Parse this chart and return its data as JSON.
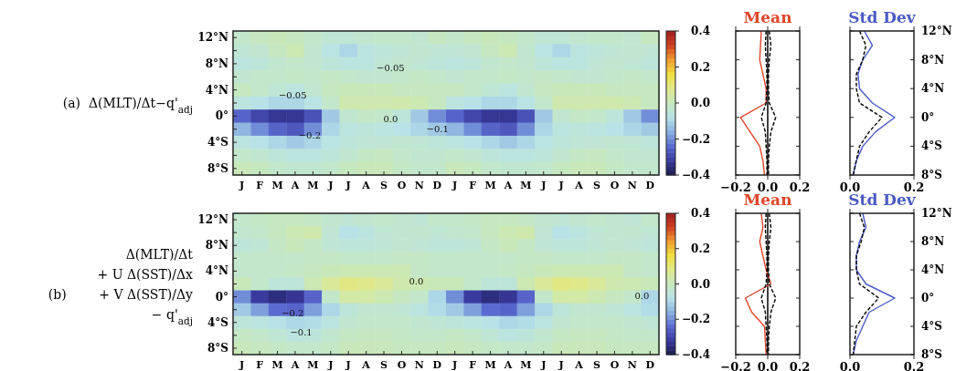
{
  "chart_data": [
    {
      "type": "heatmap",
      "ylabel": "(a)  Δ(MLT)/Δt−q'$_{adj}$",
      "categories": [
        "J",
        "F",
        "M",
        "A",
        "M",
        "J",
        "J",
        "A",
        "S",
        "O",
        "N",
        "D",
        "J",
        "F",
        "M",
        "A",
        "M",
        "J",
        "J",
        "A",
        "S",
        "O",
        "N",
        "D"
      ],
      "y_categories": [
        "12°N",
        null,
        "8°N",
        null,
        "4°N",
        null,
        "0°",
        null,
        "4°S",
        null,
        "8°S"
      ],
      "cells": [
        [
          -0.02,
          0.0,
          0.01,
          0.0,
          -0.02,
          -0.04,
          -0.04,
          -0.03,
          -0.02,
          -0.02,
          -0.03,
          0.0,
          -0.02,
          0.0,
          0.01,
          0.0,
          -0.02,
          -0.04,
          -0.04,
          -0.03,
          -0.02,
          -0.02,
          -0.03,
          0.0
        ],
        [
          -0.04,
          -0.03,
          0.0,
          0.02,
          -0.03,
          -0.07,
          -0.1,
          -0.06,
          -0.05,
          -0.04,
          -0.03,
          -0.04,
          -0.04,
          -0.03,
          0.0,
          0.02,
          -0.03,
          -0.07,
          -0.1,
          -0.06,
          -0.05,
          -0.04,
          -0.03,
          -0.04
        ],
        [
          -0.06,
          -0.05,
          -0.03,
          -0.02,
          -0.03,
          -0.05,
          -0.06,
          -0.06,
          -0.04,
          -0.03,
          -0.04,
          -0.05,
          -0.06,
          -0.05,
          -0.03,
          -0.02,
          -0.03,
          -0.05,
          -0.06,
          -0.06,
          -0.04,
          -0.03,
          -0.04,
          -0.05
        ],
        [
          -0.03,
          -0.02,
          -0.02,
          -0.01,
          -0.02,
          -0.01,
          -0.02,
          -0.03,
          -0.03,
          -0.02,
          -0.01,
          -0.02,
          -0.03,
          -0.02,
          -0.02,
          -0.01,
          -0.02,
          -0.01,
          -0.02,
          -0.03,
          -0.03,
          -0.02,
          -0.01,
          -0.02
        ],
        [
          0.0,
          -0.02,
          -0.04,
          -0.06,
          -0.03,
          0.0,
          0.01,
          0.01,
          0.01,
          0.0,
          0.0,
          0.0,
          0.0,
          -0.02,
          -0.04,
          -0.06,
          -0.03,
          0.0,
          0.01,
          0.01,
          0.01,
          0.0,
          0.0,
          0.0
        ],
        [
          -0.06,
          -0.08,
          -0.1,
          -0.1,
          -0.07,
          -0.02,
          0.03,
          0.03,
          0.03,
          0.03,
          0.02,
          0.0,
          -0.06,
          -0.08,
          -0.1,
          -0.1,
          -0.07,
          -0.02,
          0.03,
          0.03,
          0.03,
          0.03,
          0.02,
          0.0
        ],
        [
          -0.25,
          -0.3,
          -0.33,
          -0.33,
          -0.28,
          -0.12,
          -0.03,
          -0.01,
          -0.02,
          -0.05,
          -0.12,
          -0.2,
          -0.25,
          -0.3,
          -0.33,
          -0.33,
          -0.28,
          -0.12,
          -0.03,
          -0.01,
          -0.02,
          -0.05,
          -0.12,
          -0.2
        ],
        [
          -0.15,
          -0.2,
          -0.25,
          -0.27,
          -0.2,
          -0.1,
          -0.06,
          -0.05,
          -0.06,
          -0.08,
          -0.1,
          -0.12,
          -0.15,
          -0.2,
          -0.25,
          -0.27,
          -0.2,
          -0.1,
          -0.06,
          -0.05,
          -0.06,
          -0.08,
          -0.1,
          -0.12
        ],
        [
          -0.06,
          -0.08,
          -0.1,
          -0.12,
          -0.1,
          -0.07,
          -0.05,
          -0.04,
          -0.04,
          -0.03,
          -0.04,
          -0.05,
          -0.06,
          -0.08,
          -0.1,
          -0.12,
          -0.1,
          -0.07,
          -0.05,
          -0.04,
          -0.04,
          -0.03,
          -0.04,
          -0.05
        ],
        [
          -0.02,
          -0.03,
          -0.05,
          -0.06,
          -0.06,
          -0.05,
          -0.03,
          -0.01,
          0.0,
          -0.02,
          -0.03,
          -0.03,
          -0.02,
          -0.03,
          -0.05,
          -0.06,
          -0.06,
          -0.05,
          -0.03,
          -0.01,
          0.0,
          -0.02,
          -0.03,
          -0.03
        ],
        [
          0.01,
          0.0,
          -0.02,
          -0.03,
          -0.03,
          -0.02,
          0.0,
          0.01,
          0.01,
          -0.01,
          -0.02,
          -0.02,
          0.01,
          0.0,
          -0.02,
          -0.03,
          -0.03,
          -0.02,
          0.0,
          0.01,
          0.01,
          -0.01,
          -0.02,
          -0.02
        ]
      ],
      "clim": [
        -0.4,
        0.4
      ],
      "cticks": [
        {
          "value": 0.4,
          "label": "0.4"
        },
        {
          "value": 0.2,
          "label": "0.2"
        },
        {
          "value": 0.0,
          "label": "0.0"
        },
        {
          "value": -0.2,
          "label": "−0.2"
        },
        {
          "value": -0.4,
          "label": "−0.4"
        }
      ],
      "annotations": [
        "−0.05",
        "−0.05",
        "0.0",
        "−0.2",
        "−0.1"
      ]
    },
    {
      "type": "line",
      "orientation": "horizontal",
      "title": "Mean",
      "x": [
        12,
        10,
        8,
        6,
        4,
        2,
        0,
        -2,
        -4,
        -6,
        -8
      ],
      "xlim": [
        -0.2,
        0.2
      ],
      "xticks": [
        {
          "value": -0.2,
          "label": "−0.2"
        },
        {
          "value": 0,
          "label": "0.0"
        },
        {
          "value": 0.2,
          "label": "0.2"
        }
      ],
      "ylim": [
        -8,
        12
      ],
      "yticks": [
        {
          "value": 12,
          "label": null
        },
        {
          "value": 8,
          "label": null
        },
        {
          "value": 4,
          "label": null
        },
        {
          "value": 0,
          "label": null
        },
        {
          "value": -4,
          "label": null
        },
        {
          "value": -8,
          "label": null
        }
      ],
      "tick_labels": "x",
      "ref_lines": [
        {
          "axis": "x",
          "value": 0,
          "color": "#000000",
          "line_style": "solid"
        }
      ],
      "series": [
        {
          "color": "#e0462a",
          "line_style": "solid",
          "values": [
            -0.04,
            -0.045,
            -0.05,
            -0.03,
            -0.01,
            -0.01,
            -0.17,
            -0.11,
            -0.05,
            -0.03,
            -0.02
          ]
        },
        {
          "color": "#000000",
          "line_style": "dashed",
          "values": [
            -0.01,
            -0.015,
            -0.01,
            -0.005,
            -0.005,
            -0.01,
            -0.04,
            -0.015,
            -0.01,
            -0.005,
            -0.005
          ]
        },
        {
          "color": "#000000",
          "line_style": "dashed",
          "values": [
            0.01,
            0.02,
            0.01,
            0.005,
            0.005,
            0.01,
            0.05,
            0.02,
            0.01,
            0.005,
            0.005
          ]
        }
      ]
    },
    {
      "type": "line",
      "orientation": "horizontal",
      "title": "Std Dev",
      "x": [
        12,
        10,
        8,
        6,
        4,
        2,
        0,
        -2,
        -4,
        -6,
        -8
      ],
      "xlim": [
        0,
        0.2
      ],
      "xticks": [
        {
          "value": 0,
          "label": "0.0"
        },
        {
          "value": 0.2,
          "label": "0.2"
        }
      ],
      "ylim": [
        -8,
        12
      ],
      "yticks": [
        {
          "value": 12,
          "label": "12°N"
        },
        {
          "value": 8,
          "label": "8°N"
        },
        {
          "value": 4,
          "label": "4°N"
        },
        {
          "value": 0,
          "label": "0°"
        },
        {
          "value": -4,
          "label": "4°S"
        },
        {
          "value": -8,
          "label": "8°S"
        }
      ],
      "series": [
        {
          "color": "#4b5bc4",
          "line_style": "solid",
          "values": [
            0.045,
            0.07,
            0.04,
            0.025,
            0.03,
            0.07,
            0.14,
            0.08,
            0.04,
            0.02,
            0.01
          ]
        },
        {
          "color": "#000000",
          "line_style": "dashed",
          "values": [
            0.03,
            0.05,
            0.04,
            0.02,
            0.02,
            0.03,
            0.1,
            0.06,
            0.03,
            0.02,
            0.01
          ]
        }
      ]
    },
    {
      "type": "heatmap",
      "ylabel": "Δ(MLT)/Δt\n+ U Δ(SST)/Δx\n(b)        + V Δ(SST)/Δy\n− q'$_{adj}$",
      "categories": [
        "J",
        "F",
        "M",
        "A",
        "M",
        "J",
        "J",
        "A",
        "S",
        "O",
        "N",
        "D",
        "J",
        "F",
        "M",
        "A",
        "M",
        "J",
        "J",
        "A",
        "S",
        "O",
        "N",
        "D"
      ],
      "y_categories": [
        "12°N",
        null,
        "8°N",
        null,
        "4°N",
        null,
        "0°",
        null,
        "4°S",
        null,
        "8°S"
      ],
      "cells": [
        [
          -0.02,
          -0.01,
          0.0,
          0.0,
          -0.01,
          -0.03,
          -0.04,
          -0.03,
          -0.02,
          -0.03,
          -0.04,
          -0.02,
          -0.02,
          -0.01,
          0.0,
          0.0,
          -0.01,
          -0.03,
          -0.04,
          -0.03,
          -0.02,
          -0.03,
          -0.04,
          -0.02
        ],
        [
          -0.03,
          -0.02,
          0.0,
          0.02,
          0.03,
          -0.04,
          -0.08,
          -0.06,
          -0.04,
          -0.03,
          -0.03,
          -0.04,
          -0.03,
          -0.02,
          0.0,
          0.02,
          0.03,
          -0.04,
          -0.08,
          -0.06,
          -0.04,
          -0.03,
          -0.03,
          -0.04
        ],
        [
          -0.05,
          -0.04,
          -0.01,
          0.01,
          -0.01,
          -0.04,
          -0.05,
          -0.05,
          -0.04,
          -0.03,
          -0.04,
          -0.05,
          -0.05,
          -0.04,
          -0.01,
          0.01,
          -0.01,
          -0.04,
          -0.05,
          -0.05,
          -0.04,
          -0.03,
          -0.04,
          -0.05
        ],
        [
          -0.02,
          -0.02,
          -0.02,
          -0.02,
          -0.01,
          -0.01,
          -0.02,
          -0.02,
          -0.02,
          -0.01,
          -0.01,
          -0.02,
          -0.02,
          -0.02,
          -0.02,
          -0.02,
          -0.01,
          -0.01,
          -0.02,
          -0.02,
          -0.02,
          -0.01,
          -0.01,
          -0.02
        ],
        [
          -0.02,
          -0.02,
          -0.02,
          -0.01,
          0.0,
          0.01,
          0.02,
          0.02,
          0.02,
          0.02,
          -0.01,
          -0.02,
          -0.02,
          -0.02,
          -0.02,
          -0.01,
          0.0,
          0.01,
          0.02,
          0.02,
          0.02,
          0.02,
          -0.01,
          -0.02
        ],
        [
          0.01,
          -0.02,
          -0.05,
          -0.05,
          0.02,
          0.06,
          0.09,
          0.08,
          0.06,
          0.03,
          0.02,
          0.01,
          0.01,
          -0.02,
          -0.05,
          -0.05,
          0.02,
          0.06,
          0.09,
          0.08,
          0.06,
          0.03,
          0.02,
          0.01
        ],
        [
          -0.2,
          -0.32,
          -0.35,
          -0.33,
          -0.25,
          -0.02,
          0.04,
          0.04,
          0.02,
          0.0,
          -0.02,
          -0.1,
          -0.2,
          -0.32,
          -0.35,
          -0.33,
          -0.25,
          -0.02,
          0.04,
          0.04,
          0.02,
          0.0,
          -0.02,
          -0.1
        ],
        [
          -0.12,
          -0.18,
          -0.24,
          -0.25,
          -0.18,
          -0.1,
          -0.05,
          -0.03,
          -0.03,
          -0.04,
          -0.06,
          -0.09,
          -0.12,
          -0.18,
          -0.24,
          -0.25,
          -0.18,
          -0.1,
          -0.05,
          -0.03,
          -0.03,
          -0.04,
          -0.06,
          -0.09
        ],
        [
          -0.05,
          -0.06,
          -0.08,
          -0.1,
          -0.09,
          -0.06,
          -0.03,
          -0.02,
          -0.02,
          -0.02,
          -0.03,
          -0.04,
          -0.05,
          -0.06,
          -0.08,
          -0.1,
          -0.09,
          -0.06,
          -0.03,
          -0.02,
          -0.02,
          -0.02,
          -0.03,
          -0.04
        ],
        [
          -0.01,
          -0.02,
          -0.04,
          -0.06,
          -0.05,
          -0.03,
          -0.01,
          0.0,
          0.0,
          -0.01,
          -0.02,
          -0.02,
          -0.01,
          -0.02,
          -0.04,
          -0.06,
          -0.05,
          -0.03,
          -0.01,
          0.0,
          0.0,
          -0.01,
          -0.02,
          -0.02
        ],
        [
          0.01,
          0.0,
          -0.01,
          -0.02,
          -0.02,
          -0.01,
          0.01,
          0.01,
          0.01,
          0.0,
          0.0,
          0.0,
          0.01,
          0.0,
          -0.01,
          -0.02,
          -0.02,
          -0.01,
          0.01,
          0.01,
          0.01,
          0.0,
          0.0,
          0.0
        ]
      ],
      "clim": [
        -0.4,
        0.4
      ],
      "cticks": [
        {
          "value": 0.4,
          "label": "0.4"
        },
        {
          "value": 0.2,
          "label": "0.2"
        },
        {
          "value": 0.0,
          "label": "0.0"
        },
        {
          "value": -0.2,
          "label": "−0.2"
        },
        {
          "value": -0.4,
          "label": "−0.4"
        }
      ],
      "annotations": [
        "0.0",
        "−0.2",
        "−0.1",
        "0.0"
      ]
    },
    {
      "type": "line",
      "orientation": "horizontal",
      "title": "Mean",
      "x": [
        12,
        10,
        8,
        6,
        4,
        2,
        0,
        -2,
        -4,
        -6,
        -8
      ],
      "xlim": [
        -0.2,
        0.2
      ],
      "xticks": [
        {
          "value": -0.2,
          "label": "−0.2"
        },
        {
          "value": 0,
          "label": "0.0"
        },
        {
          "value": 0.2,
          "label": "0.2"
        }
      ],
      "ylim": [
        -8,
        12
      ],
      "yticks": [
        {
          "value": 12,
          "label": null
        },
        {
          "value": 8,
          "label": null
        },
        {
          "value": 4,
          "label": null
        },
        {
          "value": 0,
          "label": null
        },
        {
          "value": -4,
          "label": null
        },
        {
          "value": -8,
          "label": null
        }
      ],
      "tick_labels": "x",
      "ref_lines": [
        {
          "axis": "x",
          "value": 0,
          "color": "#000000",
          "line_style": "solid"
        }
      ],
      "series": [
        {
          "color": "#e0462a",
          "line_style": "solid",
          "values": [
            -0.04,
            -0.03,
            -0.05,
            -0.03,
            -0.01,
            0.02,
            -0.14,
            -0.1,
            -0.02,
            -0.015,
            -0.01
          ]
        },
        {
          "color": "#000000",
          "line_style": "dashed",
          "values": [
            -0.01,
            -0.015,
            -0.01,
            -0.005,
            -0.005,
            -0.01,
            -0.04,
            -0.015,
            -0.01,
            -0.005,
            -0.005
          ]
        },
        {
          "color": "#000000",
          "line_style": "dashed",
          "values": [
            0.01,
            0.02,
            0.01,
            0.005,
            0.005,
            0.01,
            0.05,
            0.02,
            0.01,
            0.005,
            0.005
          ]
        }
      ]
    },
    {
      "type": "line",
      "orientation": "horizontal",
      "title": "Std Dev",
      "x": [
        12,
        10,
        8,
        6,
        4,
        2,
        0,
        -2,
        -4,
        -6,
        -8
      ],
      "xlim": [
        0,
        0.2
      ],
      "xticks": [
        {
          "value": 0,
          "label": "0.0"
        },
        {
          "value": 0.2,
          "label": "0.2"
        }
      ],
      "ylim": [
        -8,
        12
      ],
      "yticks": [
        {
          "value": 12,
          "label": "12°N"
        },
        {
          "value": 8,
          "label": "8°N"
        },
        {
          "value": 4,
          "label": "4°N"
        },
        {
          "value": 0,
          "label": "0°"
        },
        {
          "value": -4,
          "label": "4°S"
        },
        {
          "value": -8,
          "label": "8°S"
        }
      ],
      "series": [
        {
          "color": "#4b5bc4",
          "line_style": "solid",
          "values": [
            0.04,
            0.05,
            0.03,
            0.02,
            0.02,
            0.05,
            0.14,
            0.06,
            0.04,
            0.02,
            0.01
          ]
        },
        {
          "color": "#000000",
          "line_style": "dashed",
          "values": [
            0.03,
            0.045,
            0.035,
            0.02,
            0.02,
            0.03,
            0.09,
            0.05,
            0.02,
            0.015,
            0.01
          ]
        }
      ]
    }
  ]
}
